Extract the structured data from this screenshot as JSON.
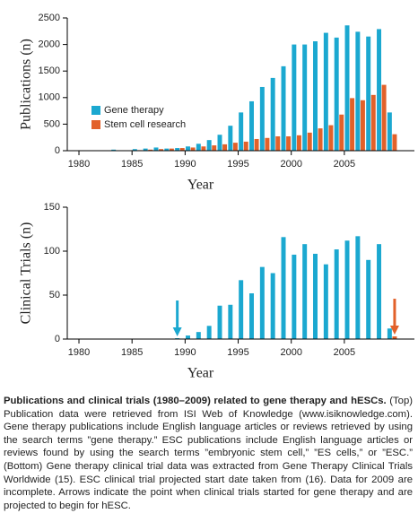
{
  "chart_data": [
    {
      "type": "bar",
      "ylabel": "Publications (n)",
      "xlabel": "Year",
      "x": [
        1980,
        1981,
        1982,
        1983,
        1984,
        1985,
        1986,
        1987,
        1988,
        1989,
        1990,
        1991,
        1992,
        1993,
        1994,
        1995,
        1996,
        1997,
        1998,
        1999,
        2000,
        2001,
        2002,
        2003,
        2004,
        2005,
        2006,
        2007,
        2008,
        2009
      ],
      "series": [
        {
          "name": "Gene therapy",
          "color": "#1ba8d0",
          "values": [
            0,
            0,
            0,
            20,
            0,
            30,
            40,
            60,
            40,
            50,
            80,
            130,
            200,
            300,
            470,
            720,
            930,
            1200,
            1370,
            1590,
            2000,
            2000,
            2060,
            2220,
            2130,
            2360,
            2240,
            2150,
            2290,
            720
          ]
        },
        {
          "name": "Stem cell research",
          "color": "#e2612a",
          "values": [
            0,
            0,
            0,
            0,
            0,
            10,
            20,
            30,
            40,
            50,
            60,
            80,
            100,
            120,
            150,
            170,
            220,
            240,
            270,
            270,
            290,
            340,
            420,
            480,
            680,
            990,
            950,
            1050,
            1240,
            310
          ]
        }
      ],
      "xlim": [
        1978.9,
        2011.6
      ],
      "xticks": [
        1980,
        1985,
        1990,
        1995,
        2000,
        2005
      ],
      "ylim": [
        0,
        2500
      ],
      "yticks": [
        0,
        500,
        1000,
        1500,
        2000,
        2500
      ],
      "legend": "left"
    },
    {
      "type": "bar",
      "ylabel": "Clinical Trials (n)",
      "xlabel": "Year",
      "x": [
        1980,
        1981,
        1982,
        1983,
        1984,
        1985,
        1986,
        1987,
        1988,
        1989,
        1990,
        1991,
        1992,
        1993,
        1994,
        1995,
        1996,
        1997,
        1998,
        1999,
        2000,
        2001,
        2002,
        2003,
        2004,
        2005,
        2006,
        2007,
        2008,
        2009
      ],
      "series": [
        {
          "color": "#1ba8d0",
          "values": [
            0,
            0,
            0,
            0,
            0,
            0,
            0,
            0,
            0,
            1,
            4,
            8,
            15,
            38,
            39,
            67,
            52,
            82,
            75,
            116,
            96,
            108,
            97,
            85,
            102,
            112,
            117,
            90,
            108,
            12
          ]
        },
        {
          "color": "#e2612a",
          "values": [
            0,
            0,
            0,
            0,
            0,
            0,
            0,
            0,
            0,
            0,
            0,
            0,
            0,
            0,
            0,
            0,
            0,
            0,
            0,
            0,
            0,
            0,
            0,
            0,
            0,
            0,
            0,
            0,
            0,
            3
          ]
        }
      ],
      "xlim": [
        1978.9,
        2011.6
      ],
      "xticks": [
        1980,
        1985,
        1990,
        1995,
        2000,
        2005
      ],
      "ylim": [
        0,
        150
      ],
      "yticks": [
        0,
        50,
        100,
        150
      ]
    }
  ],
  "caption": {
    "title": "Publications and clinical trials (1980–2009) related to gene therapy and hESCs.",
    "body": "(Top) Publication data were retrieved from ISI Web of Knowledge (www.isiknowledge.com). Gene therapy publications include English language articles or reviews retrieved by using the search terms ”gene therapy.” ESC publications include English language articles or reviews found by using the search terms ”embryonic stem cell,” ”ES cells,” or ”ESC.” (Bottom) Gene therapy clinical trial data was extracted from Gene Therapy Clinical Trials Worldwide (15). ESC clinical trial projected start date taken from (16). Data for 2009 are incomplete. Arrows indicate the point when clinical trials started for gene therapy and are projected to begin for hESC."
  }
}
